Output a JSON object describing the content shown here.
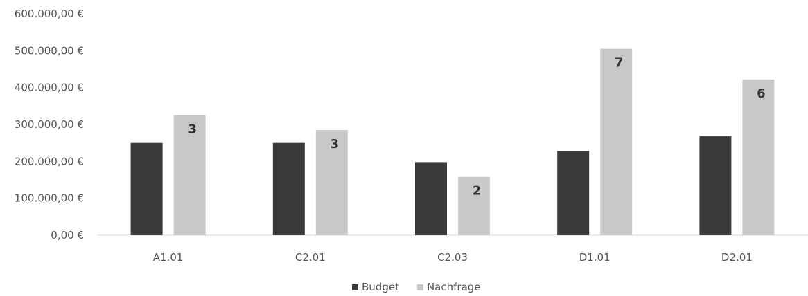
{
  "chart_data": {
    "type": "bar",
    "title": "",
    "xlabel": "",
    "ylabel": "",
    "categories": [
      "A1.01",
      "C2.01",
      "C2.03",
      "D1.01",
      "D2.01"
    ],
    "series": [
      {
        "name": "Budget",
        "color": "#3a3a3a",
        "values": [
          250000,
          250000,
          198000,
          228000,
          268000
        ]
      },
      {
        "name": "Nachfrage",
        "color": "#c8c8c8",
        "values": [
          325000,
          285000,
          158000,
          505000,
          422000
        ]
      }
    ],
    "data_labels": {
      "Nachfrage": [
        "3",
        "3",
        "2",
        "7",
        "6"
      ]
    },
    "ylim": [
      0,
      600000
    ],
    "y_ticks": [
      0,
      100000,
      200000,
      300000,
      400000,
      500000,
      600000
    ],
    "y_tick_labels": [
      "0,00 €",
      "100.000,00 €",
      "200.000,00 €",
      "300.000,00 €",
      "400.000,00 €",
      "500.000,00 €",
      "600.000,00 €"
    ],
    "grid": false,
    "legend_position": "bottom"
  }
}
